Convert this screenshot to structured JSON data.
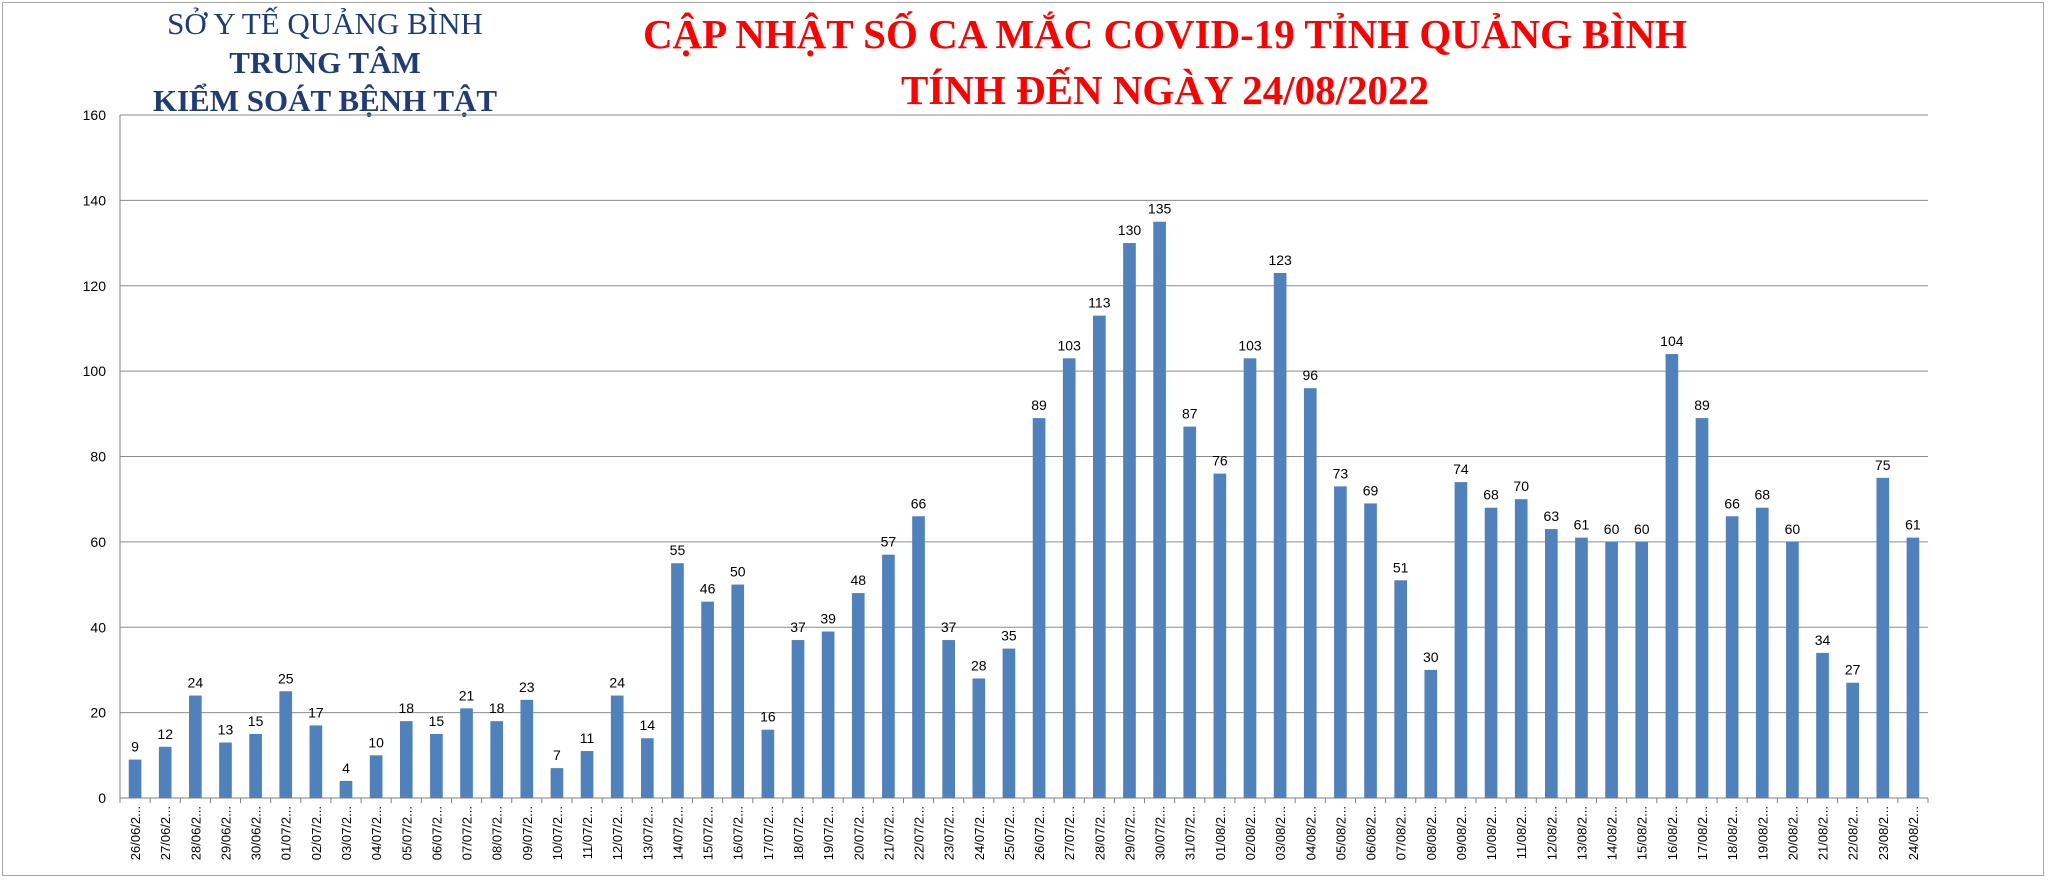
{
  "header": {
    "org_line1": "SỞ Y TẾ QUẢNG BÌNH",
    "org_line2": "TRUNG TÂM",
    "org_line3": "KIỂM SOÁT BỆNH TẬT",
    "title_line1": "CẬP NHẬT SỐ CA MẮC COVID-19 TỈNH QUẢNG BÌNH",
    "title_line2": "TÍNH ĐẾN NGÀY 24/08/2022"
  },
  "colors": {
    "bar": "#4f81bd",
    "title": "#ff0000",
    "org": "#1f3c78",
    "grid": "#8c8c8c"
  },
  "chart_data": {
    "type": "bar",
    "title": "",
    "xlabel": "",
    "ylabel": "",
    "ylim": [
      0,
      160
    ],
    "yticks": [
      0,
      20,
      40,
      60,
      80,
      100,
      120,
      140,
      160
    ],
    "grid": true,
    "legend": "none",
    "data_labels": true,
    "categories": [
      "26/06/2...",
      "27/06/2...",
      "28/06/2...",
      "29/06/2...",
      "30/06/2...",
      "01/07/2...",
      "02/07/2...",
      "03/07/2...",
      "04/07/2...",
      "05/07/2...",
      "06/07/2...",
      "07/07/2...",
      "08/07/2...",
      "09/07/2...",
      "10/07/2...",
      "11/07/2...",
      "12/07/2...",
      "13/07/2...",
      "14/07/2...",
      "15/07/2...",
      "16/07/2...",
      "17/07/2...",
      "18/07/2...",
      "19/07/2...",
      "20/07/2...",
      "21/07/2...",
      "22/07/2...",
      "23/07/2...",
      "24/07/2...",
      "25/07/2...",
      "26/07/2...",
      "27/07/2...",
      "28/07/2...",
      "29/07/2...",
      "30/07/2...",
      "31/07/2...",
      "01/08/2...",
      "02/08/2...",
      "03/08/2...",
      "04/08/2...",
      "05/08/2...",
      "06/08/2...",
      "07/08/2...",
      "08/08/2...",
      "09/08/2...",
      "10/08/2...",
      "11/08/2...",
      "12/08/2...",
      "13/08/2...",
      "14/08/2...",
      "15/08/2...",
      "16/08/2...",
      "17/08/2...",
      "18/08/2...",
      "19/08/2...",
      "20/08/2...",
      "21/08/2...",
      "22/08/2...",
      "23/08/2...",
      "24/08/2..."
    ],
    "values": [
      9,
      12,
      24,
      13,
      15,
      25,
      17,
      4,
      10,
      18,
      15,
      21,
      18,
      23,
      7,
      11,
      24,
      14,
      55,
      46,
      50,
      16,
      37,
      39,
      48,
      57,
      66,
      37,
      28,
      35,
      89,
      103,
      113,
      130,
      135,
      87,
      76,
      103,
      123,
      96,
      73,
      69,
      51,
      30,
      74,
      68,
      70,
      63,
      61,
      60,
      60,
      104,
      89,
      66,
      68,
      60,
      34,
      27,
      75,
      61
    ]
  }
}
